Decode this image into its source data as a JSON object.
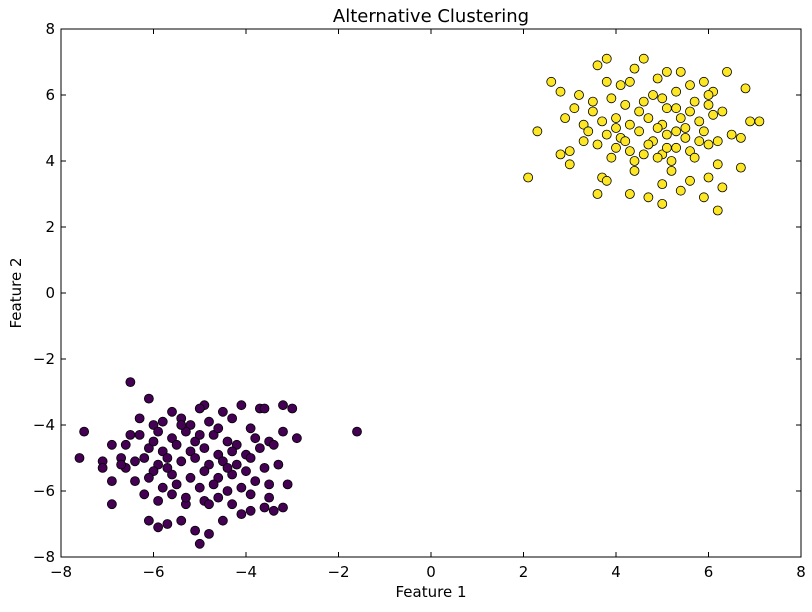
{
  "chart_data": {
    "type": "scatter",
    "title": "Alternative Clustering",
    "xlabel": "Feature 1",
    "ylabel": "Feature 2",
    "xlim": [
      -8,
      8
    ],
    "ylim": [
      -8,
      8
    ],
    "xticks": [
      -8,
      -6,
      -4,
      -2,
      0,
      2,
      4,
      6,
      8
    ],
    "yticks": [
      -8,
      -6,
      -4,
      -2,
      0,
      2,
      4,
      6,
      8
    ],
    "grid": false,
    "series": [
      {
        "color": "#440154",
        "points": [
          [
            -6.5,
            -2.7
          ],
          [
            -6.1,
            -3.2
          ],
          [
            -4.1,
            -3.4
          ],
          [
            -4.9,
            -3.4
          ],
          [
            -3.2,
            -3.4
          ],
          [
            -3.0,
            -3.5
          ],
          [
            -5.6,
            -3.6
          ],
          [
            -5.4,
            -3.8
          ],
          [
            -5.0,
            -3.5
          ],
          [
            -4.5,
            -3.6
          ],
          [
            -3.7,
            -3.5
          ],
          [
            -3.6,
            -3.5
          ],
          [
            -6.3,
            -3.8
          ],
          [
            -6.0,
            -4.0
          ],
          [
            -5.8,
            -3.9
          ],
          [
            -5.2,
            -4.0
          ],
          [
            -4.8,
            -3.9
          ],
          [
            -4.3,
            -3.8
          ],
          [
            -3.9,
            -4.1
          ],
          [
            -2.9,
            -4.4
          ],
          [
            -3.2,
            -4.2
          ],
          [
            -1.6,
            -4.2
          ],
          [
            -7.5,
            -4.2
          ],
          [
            -6.5,
            -4.3
          ],
          [
            -6.3,
            -4.3
          ],
          [
            -5.9,
            -4.2
          ],
          [
            -5.6,
            -4.4
          ],
          [
            -5.3,
            -4.2
          ],
          [
            -5.1,
            -4.5
          ],
          [
            -4.7,
            -4.3
          ],
          [
            -4.4,
            -4.5
          ],
          [
            -4.2,
            -4.6
          ],
          [
            -3.8,
            -4.4
          ],
          [
            -3.5,
            -4.5
          ],
          [
            -6.6,
            -4.6
          ],
          [
            -6.1,
            -4.7
          ],
          [
            -5.8,
            -4.8
          ],
          [
            -5.5,
            -4.6
          ],
          [
            -5.2,
            -4.8
          ],
          [
            -4.9,
            -4.7
          ],
          [
            -4.6,
            -4.9
          ],
          [
            -4.3,
            -4.8
          ],
          [
            -4.0,
            -4.9
          ],
          [
            -3.7,
            -4.7
          ],
          [
            -3.4,
            -4.6
          ],
          [
            -7.6,
            -5.0
          ],
          [
            -7.1,
            -5.1
          ],
          [
            -6.9,
            -4.6
          ],
          [
            -6.7,
            -5.0
          ],
          [
            -6.4,
            -5.1
          ],
          [
            -6.2,
            -5.0
          ],
          [
            -5.9,
            -5.2
          ],
          [
            -5.7,
            -5.0
          ],
          [
            -5.4,
            -5.1
          ],
          [
            -5.1,
            -5.0
          ],
          [
            -4.8,
            -5.2
          ],
          [
            -4.5,
            -5.1
          ],
          [
            -4.2,
            -5.2
          ],
          [
            -3.9,
            -5.0
          ],
          [
            -3.6,
            -5.3
          ],
          [
            -3.3,
            -5.2
          ],
          [
            -7.1,
            -5.3
          ],
          [
            -6.6,
            -5.3
          ],
          [
            -6.0,
            -5.4
          ],
          [
            -5.6,
            -5.5
          ],
          [
            -5.2,
            -5.6
          ],
          [
            -4.9,
            -5.4
          ],
          [
            -4.6,
            -5.6
          ],
          [
            -4.3,
            -5.5
          ],
          [
            -4.0,
            -5.4
          ],
          [
            -3.8,
            -5.7
          ],
          [
            -3.5,
            -5.8
          ],
          [
            -3.1,
            -5.8
          ],
          [
            -6.9,
            -5.7
          ],
          [
            -6.4,
            -5.7
          ],
          [
            -6.1,
            -5.6
          ],
          [
            -5.8,
            -5.9
          ],
          [
            -5.5,
            -5.8
          ],
          [
            -5.0,
            -5.9
          ],
          [
            -4.7,
            -5.8
          ],
          [
            -4.4,
            -6.0
          ],
          [
            -4.1,
            -5.9
          ],
          [
            -3.9,
            -6.1
          ],
          [
            -3.5,
            -6.2
          ],
          [
            -6.9,
            -6.4
          ],
          [
            -6.2,
            -6.1
          ],
          [
            -5.9,
            -6.3
          ],
          [
            -5.6,
            -6.1
          ],
          [
            -5.3,
            -6.4
          ],
          [
            -4.9,
            -6.3
          ],
          [
            -4.6,
            -6.2
          ],
          [
            -4.3,
            -6.4
          ],
          [
            -3.9,
            -6.6
          ],
          [
            -3.6,
            -6.5
          ],
          [
            -3.4,
            -6.6
          ],
          [
            -3.2,
            -6.5
          ],
          [
            -6.1,
            -6.9
          ],
          [
            -5.9,
            -7.1
          ],
          [
            -5.4,
            -6.9
          ],
          [
            -5.1,
            -7.2
          ],
          [
            -4.8,
            -7.3
          ],
          [
            -4.5,
            -6.9
          ],
          [
            -4.1,
            -6.7
          ],
          [
            -5.0,
            -7.6
          ],
          [
            -5.7,
            -7.0
          ],
          [
            -6.0,
            -4.5
          ],
          [
            -5.0,
            -4.3
          ],
          [
            -4.6,
            -4.1
          ],
          [
            -5.4,
            -4.0
          ],
          [
            -6.7,
            -5.2
          ],
          [
            -4.8,
            -6.4
          ],
          [
            -5.3,
            -6.2
          ],
          [
            -5.7,
            -5.3
          ],
          [
            -4.4,
            -5.3
          ]
        ]
      },
      {
        "color": "#fde725",
        "points": [
          [
            4.6,
            7.1
          ],
          [
            3.8,
            7.1
          ],
          [
            3.6,
            6.9
          ],
          [
            4.4,
            6.8
          ],
          [
            5.1,
            6.7
          ],
          [
            5.4,
            6.7
          ],
          [
            2.6,
            6.4
          ],
          [
            2.8,
            6.1
          ],
          [
            3.8,
            6.4
          ],
          [
            3.2,
            6.0
          ],
          [
            4.3,
            6.4
          ],
          [
            4.9,
            6.5
          ],
          [
            5.6,
            6.3
          ],
          [
            6.1,
            6.1
          ],
          [
            6.4,
            6.7
          ],
          [
            3.1,
            5.6
          ],
          [
            3.5,
            5.8
          ],
          [
            3.9,
            5.9
          ],
          [
            4.2,
            5.7
          ],
          [
            4.6,
            5.8
          ],
          [
            5.0,
            5.9
          ],
          [
            5.3,
            5.6
          ],
          [
            5.7,
            5.8
          ],
          [
            6.0,
            6.0
          ],
          [
            6.3,
            5.5
          ],
          [
            6.8,
            6.2
          ],
          [
            2.9,
            5.3
          ],
          [
            3.3,
            5.1
          ],
          [
            3.7,
            5.2
          ],
          [
            4.0,
            5.3
          ],
          [
            4.3,
            5.1
          ],
          [
            4.7,
            5.3
          ],
          [
            5.0,
            5.1
          ],
          [
            5.4,
            5.3
          ],
          [
            5.8,
            5.2
          ],
          [
            6.1,
            5.4
          ],
          [
            6.9,
            5.2
          ],
          [
            7.1,
            5.2
          ],
          [
            2.3,
            4.9
          ],
          [
            3.4,
            4.9
          ],
          [
            3.8,
            4.8
          ],
          [
            4.1,
            4.7
          ],
          [
            4.5,
            4.9
          ],
          [
            4.8,
            4.6
          ],
          [
            5.1,
            4.8
          ],
          [
            5.5,
            4.7
          ],
          [
            5.9,
            4.9
          ],
          [
            6.2,
            4.6
          ],
          [
            6.5,
            4.8
          ],
          [
            6.7,
            4.7
          ],
          [
            3.6,
            4.5
          ],
          [
            4.0,
            4.4
          ],
          [
            4.3,
            4.3
          ],
          [
            4.7,
            4.5
          ],
          [
            5.0,
            4.2
          ],
          [
            5.3,
            4.4
          ],
          [
            5.6,
            4.3
          ],
          [
            6.0,
            4.5
          ],
          [
            3.0,
            4.3
          ],
          [
            2.8,
            4.2
          ],
          [
            3.9,
            4.1
          ],
          [
            4.4,
            4.0
          ],
          [
            4.9,
            4.1
          ],
          [
            5.2,
            4.0
          ],
          [
            5.7,
            4.1
          ],
          [
            6.2,
            3.9
          ],
          [
            6.7,
            3.8
          ],
          [
            3.0,
            3.9
          ],
          [
            3.7,
            3.5
          ],
          [
            4.4,
            3.7
          ],
          [
            5.2,
            3.7
          ],
          [
            5.6,
            3.4
          ],
          [
            6.0,
            3.5
          ],
          [
            2.1,
            3.5
          ],
          [
            3.8,
            3.4
          ],
          [
            5.0,
            3.3
          ],
          [
            6.3,
            3.2
          ],
          [
            3.6,
            3.0
          ],
          [
            4.3,
            3.0
          ],
          [
            4.7,
            2.9
          ],
          [
            5.4,
            3.1
          ],
          [
            5.9,
            2.9
          ],
          [
            5.0,
            2.7
          ],
          [
            6.2,
            2.5
          ],
          [
            4.1,
            6.3
          ],
          [
            5.3,
            6.1
          ],
          [
            4.8,
            6.0
          ],
          [
            5.9,
            6.4
          ],
          [
            3.5,
            5.5
          ],
          [
            4.5,
            5.5
          ],
          [
            5.1,
            5.6
          ],
          [
            5.6,
            5.5
          ],
          [
            4.2,
            4.6
          ],
          [
            5.3,
            4.9
          ],
          [
            5.8,
            4.6
          ],
          [
            4.6,
            4.2
          ],
          [
            5.1,
            4.4
          ],
          [
            5.5,
            5.0
          ],
          [
            4.0,
            5.0
          ],
          [
            6.0,
            5.7
          ],
          [
            3.3,
            4.6
          ],
          [
            4.9,
            5.0
          ]
        ]
      }
    ]
  }
}
